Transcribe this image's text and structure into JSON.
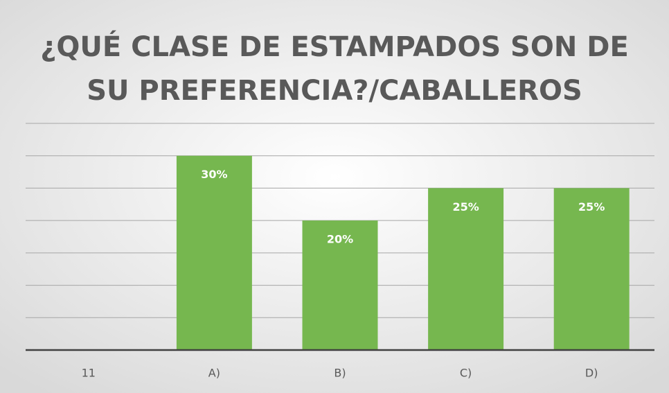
{
  "chart_data": {
    "type": "bar",
    "title": [
      "¿QUÉ CLASE DE ESTAMPADOS SON DE",
      "SU PREFERENCIA?/CABALLEROS"
    ],
    "categories": [
      "11",
      "A)",
      "B)",
      "C)",
      "D)"
    ],
    "values": [
      null,
      30,
      20,
      25,
      25
    ],
    "value_labels": [
      null,
      "30%",
      "20%",
      "25%",
      "25%"
    ],
    "color": "#76b74f",
    "ylim": [
      0,
      35
    ],
    "yticks": [
      0,
      5,
      10,
      15,
      20,
      25,
      30,
      35
    ],
    "grid": true
  }
}
